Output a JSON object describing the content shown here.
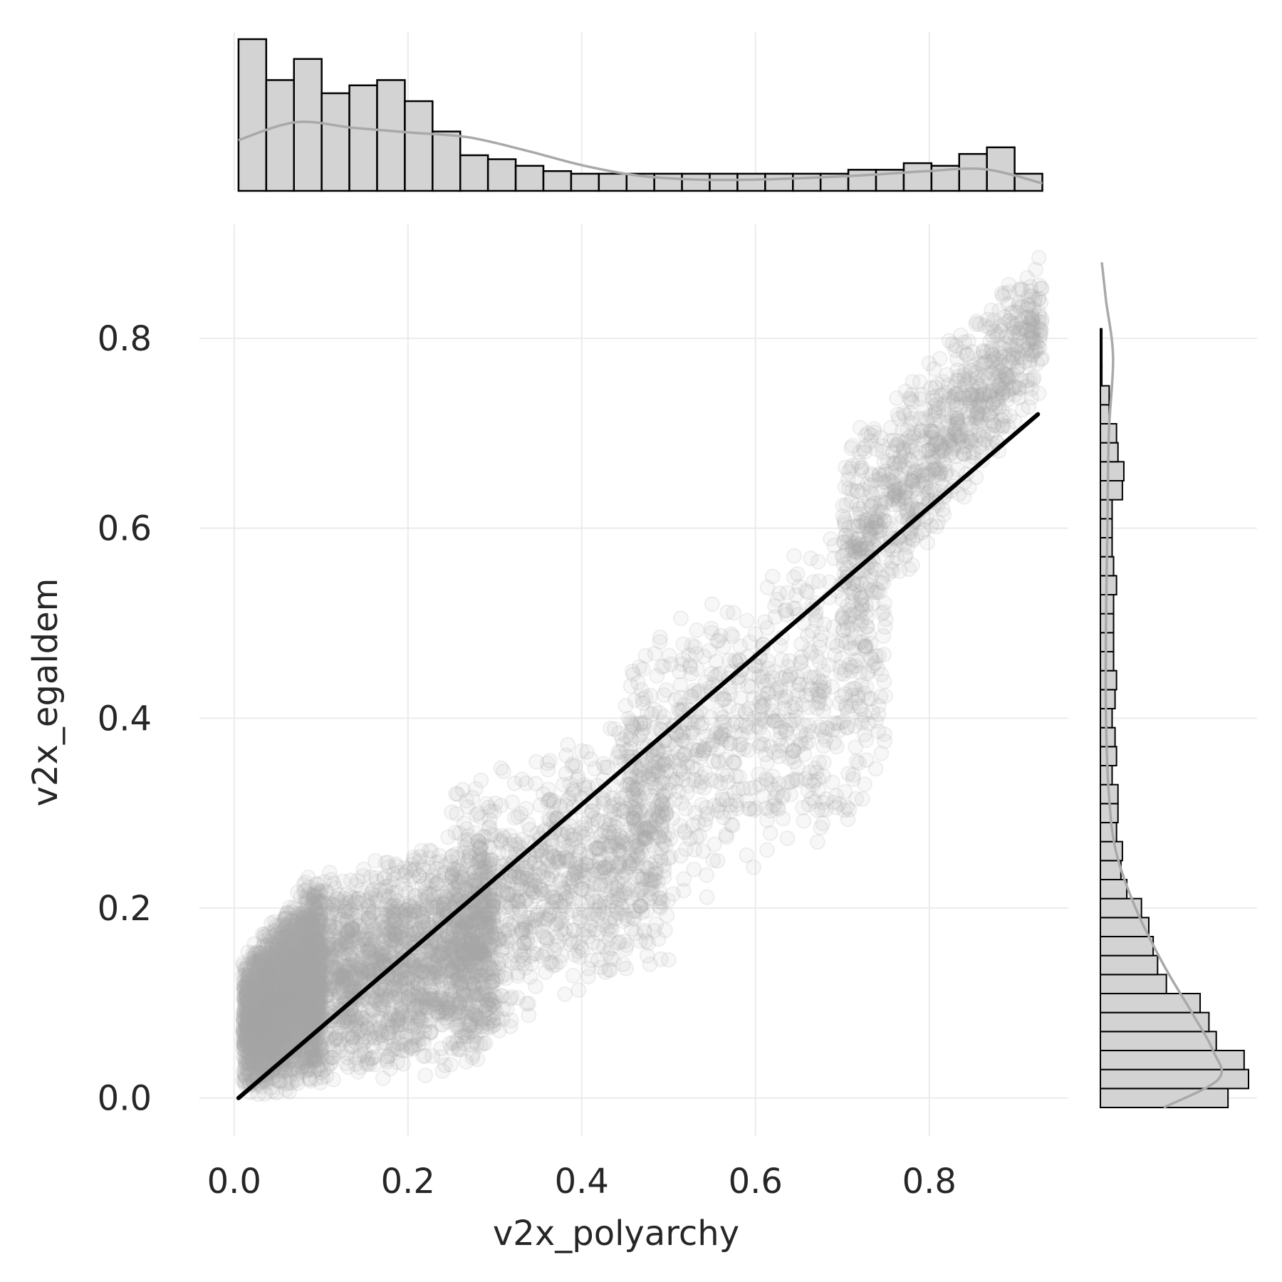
{
  "chart_data": {
    "type": "scatter",
    "subtype": "joint plot with marginal histograms and regression line",
    "xlabel": "v2x_polyarchy",
    "ylabel": "v2x_egaldem",
    "xlim": [
      -0.04,
      0.96
    ],
    "ylim": [
      -0.04,
      0.92
    ],
    "x_ticks": [
      0.0,
      0.2,
      0.4,
      0.6,
      0.8
    ],
    "x_tick_labels": [
      "0.0",
      "0.2",
      "0.4",
      "0.6",
      "0.8"
    ],
    "y_ticks": [
      0.0,
      0.2,
      0.4,
      0.6,
      0.8
    ],
    "y_tick_labels": [
      "0.0",
      "0.2",
      "0.4",
      "0.6",
      "0.8"
    ],
    "grid": true,
    "colors": {
      "points": "#a9a9a9",
      "regression_line": "#000000",
      "hist_fill": "#d3d3d3",
      "hist_edge": "#000000",
      "kde": "#a9a9a9",
      "grid": "#ebebeb",
      "text": "#262626"
    },
    "regression_line": {
      "x": [
        0.005,
        0.925
      ],
      "y": [
        0.0,
        0.72
      ]
    },
    "scatter_bands": [
      {
        "x": [
          0.01,
          0.1
        ],
        "y_low": [
          0.0,
          0.01
        ],
        "y_high": [
          0.15,
          0.25
        ],
        "weight": 3.0
      },
      {
        "x": [
          0.08,
          0.3
        ],
        "y_low": [
          0.01,
          0.03
        ],
        "y_high": [
          0.24,
          0.29
        ],
        "weight": 2.2
      },
      {
        "x": [
          0.25,
          0.5
        ],
        "y_low": [
          0.04,
          0.13
        ],
        "y_high": [
          0.34,
          0.43
        ],
        "weight": 1.2
      },
      {
        "x": [
          0.45,
          0.75
        ],
        "y_low": [
          0.17,
          0.29
        ],
        "y_high": [
          0.5,
          0.63
        ],
        "weight": 0.9
      },
      {
        "x": [
          0.7,
          0.93
        ],
        "y_low": [
          0.45,
          0.74
        ],
        "y_high": [
          0.7,
          0.89
        ],
        "weight": 1.0
      }
    ],
    "x_marginal": {
      "bin_edges_start": 0.005,
      "bin_width": 0.0319,
      "counts": [
        1150,
        840,
        1000,
        740,
        800,
        840,
        680,
        450,
        270,
        240,
        190,
        150,
        130,
        130,
        130,
        130,
        130,
        130,
        130,
        130,
        130,
        130,
        160,
        160,
        210,
        190,
        280,
        330,
        130
      ],
      "kde": [
        0.54,
        0.73,
        0.67,
        0.62,
        0.57,
        0.43,
        0.27,
        0.16,
        0.12,
        0.12,
        0.14,
        0.17,
        0.21,
        0.23,
        0.08
      ]
    },
    "y_marginal": {
      "bin_edges_start": -0.01,
      "bin_width": 0.02,
      "counts": [
        870,
        1010,
        980,
        790,
        740,
        680,
        450,
        390,
        360,
        330,
        280,
        180,
        140,
        150,
        110,
        120,
        120,
        80,
        110,
        100,
        80,
        100,
        110,
        90,
        90,
        90,
        90,
        110,
        90,
        80,
        80,
        80,
        150,
        160,
        120,
        110,
        60,
        60,
        10,
        10,
        10
      ],
      "kde_y": [
        -0.01,
        0.02,
        0.05,
        0.09,
        0.14,
        0.2,
        0.26,
        0.32,
        0.4,
        0.5,
        0.6,
        0.7,
        0.78,
        0.84,
        0.88
      ],
      "kde": [
        0.45,
        0.84,
        0.8,
        0.65,
        0.45,
        0.25,
        0.11,
        0.06,
        0.04,
        0.04,
        0.05,
        0.06,
        0.09,
        0.04,
        0.01
      ]
    }
  }
}
